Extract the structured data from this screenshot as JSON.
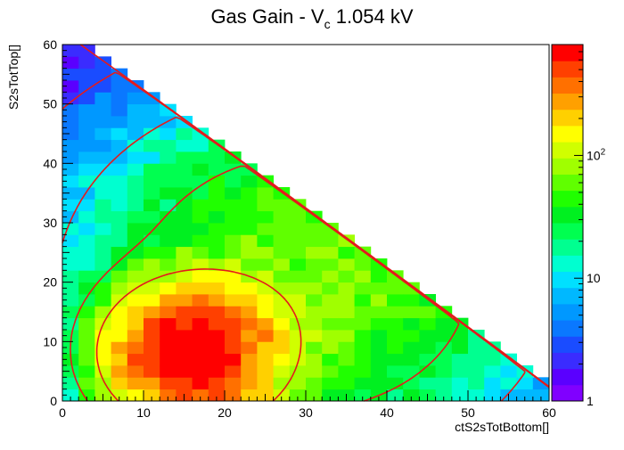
{
  "title": {
    "main": "Gas Gain - V",
    "sub": "c",
    "rest": " 1.054 kV"
  },
  "chart_data": {
    "type": "heatmap",
    "title": "Gas Gain - Vc 1.054 kV",
    "xlabel": "ctS2sTotBottom[]",
    "ylabel": "S2sTotTop[]",
    "xlim": [
      0,
      60
    ],
    "ylim": [
      0,
      60
    ],
    "x_ticks": [
      "0",
      "10",
      "20",
      "30",
      "40",
      "50",
      "60"
    ],
    "y_ticks": [
      "0",
      "10",
      "20",
      "30",
      "40",
      "50",
      "60"
    ],
    "bin_size": 2,
    "z_scale": "log",
    "zlim": [
      1,
      800
    ],
    "colorbar_ticks": [
      {
        "value": 1,
        "label": "1"
      },
      {
        "value": 10,
        "label": "10"
      },
      {
        "value": 100,
        "label": "10",
        "exp": "2"
      }
    ],
    "contour_color": "#e41a1c",
    "contour_model": {
      "peak_x": 16,
      "peak_y": 8,
      "peak_amp": 850,
      "peak_sx": 5.5,
      "peak_sy": 6,
      "bg_amp": 70,
      "bg_x": 30,
      "bg_y": 20,
      "bg_sx": 15,
      "bg_sy": 16,
      "diag_cut": 62
    },
    "levels": [
      1,
      3,
      10,
      30,
      100
    ],
    "grid": false,
    "legend": "colorbar-right"
  }
}
